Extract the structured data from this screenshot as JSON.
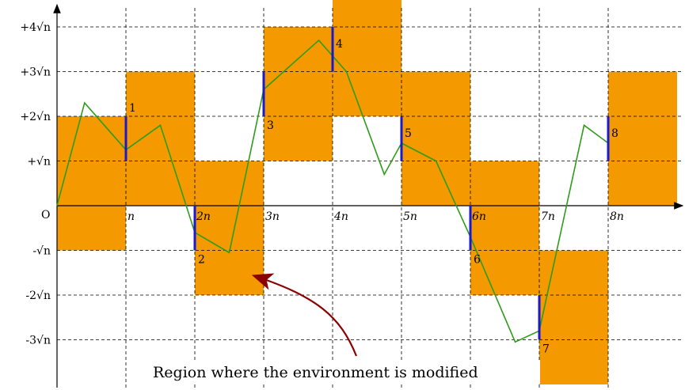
{
  "figure": {
    "origin_label": "O",
    "x_tick_labels": [
      "n",
      "2n",
      "3n",
      "4n",
      "5n",
      "6n",
      "7n",
      "8n"
    ],
    "y_tick_labels_positive": [
      "+√n",
      "+2√n",
      "+3√n",
      "+4√n"
    ],
    "y_tick_labels_negative": [
      "-√n",
      "-2√n",
      "-3√n"
    ],
    "annotation": "Region where the environment is modified",
    "colors": {
      "region": "#F49A00",
      "walk": "#2E9C1A",
      "marker": "#1A1ACC",
      "arrow": "#8B0000",
      "grid": "#000000"
    }
  },
  "chart_data": {
    "type": "line",
    "x_unit": "n",
    "y_unit": "√n",
    "grid": true,
    "regions": [
      {
        "x": [
          0,
          1
        ],
        "y": [
          -1,
          2
        ]
      },
      {
        "x": [
          1,
          2
        ],
        "y": [
          0,
          3
        ]
      },
      {
        "x": [
          2,
          3
        ],
        "y": [
          -2,
          1
        ]
      },
      {
        "x": [
          3,
          4
        ],
        "y": [
          1,
          4
        ]
      },
      {
        "x": [
          4,
          5
        ],
        "y": [
          2,
          5
        ]
      },
      {
        "x": [
          5,
          6
        ],
        "y": [
          0,
          3
        ]
      },
      {
        "x": [
          6,
          7
        ],
        "y": [
          -2,
          1
        ]
      },
      {
        "x": [
          7,
          8
        ],
        "y": [
          -4,
          -1
        ]
      },
      {
        "x": [
          8,
          9
        ],
        "y": [
          0,
          3
        ]
      }
    ],
    "walk": {
      "x": [
        0,
        0.4,
        1.0,
        1.5,
        2.0,
        2.5,
        3.0,
        3.8,
        4.2,
        4.75,
        5.0,
        5.5,
        6.0,
        6.65,
        7.0,
        7.65,
        8.0
      ],
      "y": [
        0,
        2.3,
        1.25,
        1.8,
        -0.6,
        -1.05,
        2.6,
        3.7,
        3.0,
        0.7,
        1.4,
        1.0,
        -0.7,
        -3.05,
        -2.8,
        1.8,
        1.4
      ]
    },
    "markers": [
      {
        "label": "1",
        "x": 1,
        "y": [
          1,
          2
        ]
      },
      {
        "label": "2",
        "x": 2,
        "y": [
          -1,
          0
        ]
      },
      {
        "label": "3",
        "x": 3,
        "y": [
          2,
          3
        ]
      },
      {
        "label": "4",
        "x": 4,
        "y": [
          3,
          4
        ]
      },
      {
        "label": "5",
        "x": 5,
        "y": [
          1,
          2
        ]
      },
      {
        "label": "6",
        "x": 6,
        "y": [
          -1,
          0
        ]
      },
      {
        "label": "7",
        "x": 7,
        "y": [
          -3,
          -2
        ]
      },
      {
        "label": "8",
        "x": 8,
        "y": [
          1,
          2
        ]
      }
    ]
  }
}
